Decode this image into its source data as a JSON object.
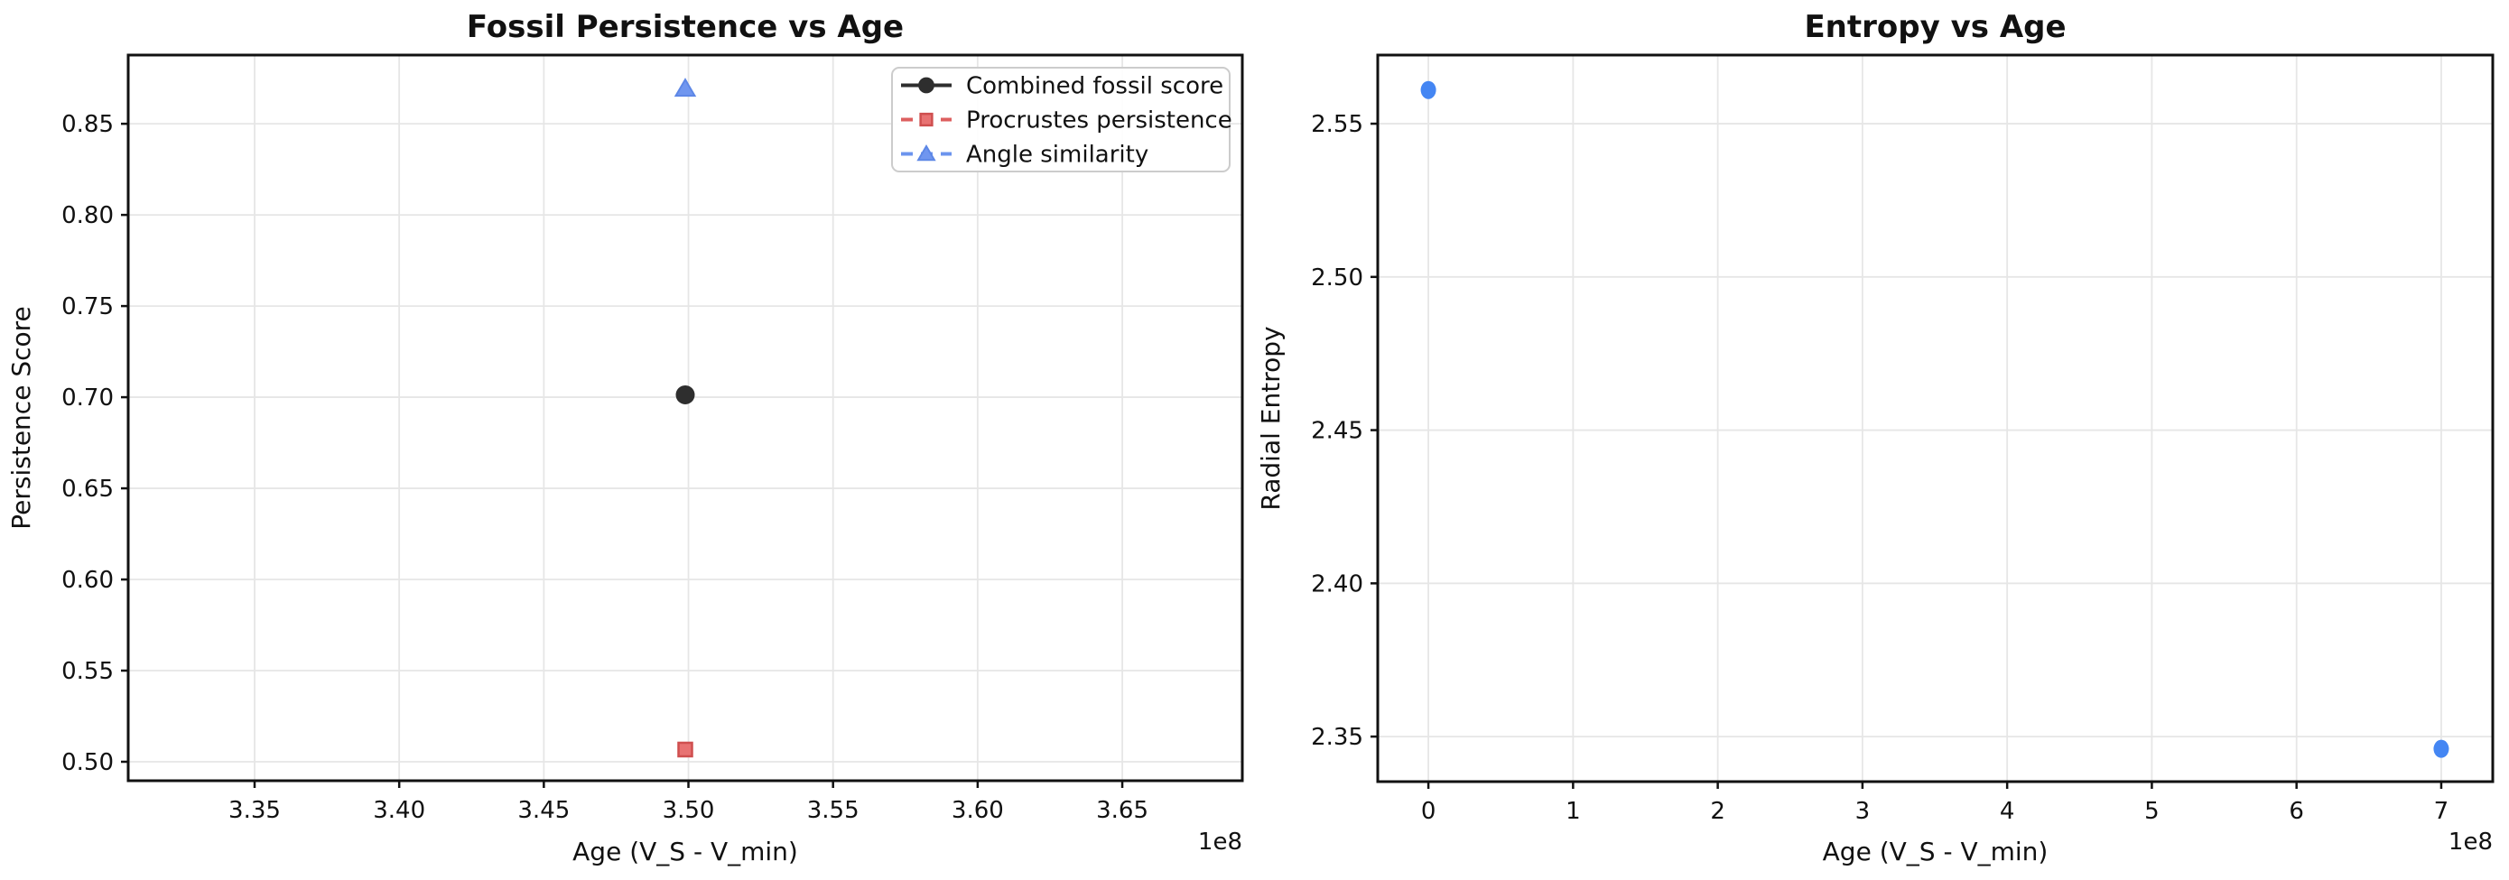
{
  "figure": {
    "background": "#ffffff",
    "grid_color": "#e6e6e6",
    "spine_color": "#111111",
    "text_color": "#111111",
    "legend_border_color": "#cccccc",
    "legend_fill": "#ffffff"
  },
  "chart_data": [
    {
      "type": "line",
      "title": "Fossil Persistence vs Age",
      "xlabel": "Age (V_S - V_min)",
      "ylabel": "Persistence Score",
      "x_offset_label": "1e8",
      "grid": true,
      "legend_position": "upper right",
      "xlim": [
        330630000,
        369150000
      ],
      "ylim": [
        0.4896,
        0.8877
      ],
      "xticks": {
        "values": [
          335000000,
          340000000,
          345000000,
          350000000,
          355000000,
          360000000,
          365000000
        ],
        "labels": [
          "3.35",
          "3.40",
          "3.45",
          "3.50",
          "3.55",
          "3.60",
          "3.65"
        ]
      },
      "yticks": {
        "values": [
          0.5,
          0.55,
          0.6,
          0.65,
          0.7,
          0.75,
          0.8,
          0.85
        ],
        "labels": [
          "0.50",
          "0.55",
          "0.60",
          "0.65",
          "0.70",
          "0.75",
          "0.80",
          "0.85"
        ]
      },
      "show_legend": true,
      "series": [
        {
          "name": "Combined fossil score",
          "marker": "circle",
          "line": "solid",
          "color": "#2e2e2e",
          "marker_fill": "#2e2e2e",
          "marker_edge": "#2e2e2e",
          "points": [
            {
              "x": 349890000,
              "y": 0.7013
            }
          ]
        },
        {
          "name": "Procrustes persistence",
          "marker": "square",
          "line": "dashed",
          "color": "#dd5f5f",
          "marker_fill": "#e87272",
          "marker_edge": "#cf4f4f",
          "points": [
            {
              "x": 349890000,
              "y": 0.5067
            }
          ]
        },
        {
          "name": "Angle similarity",
          "marker": "triangle",
          "line": "dashed",
          "color": "#6c94ee",
          "marker_fill": "#7096ef",
          "marker_edge": "#5d87e6",
          "points": [
            {
              "x": 349890000,
              "y": 0.8693
            }
          ]
        }
      ]
    },
    {
      "type": "scatter",
      "title": "Entropy vs Age",
      "xlabel": "Age (V_S - V_min)",
      "ylabel": "Radial Entropy",
      "x_offset_label": "1e8",
      "grid": true,
      "legend_position": "none",
      "xlim": [
        -35000000,
        735600000
      ],
      "ylim": [
        2.3353,
        2.5724
      ],
      "xticks": {
        "values": [
          0,
          100000000,
          200000000,
          300000000,
          400000000,
          500000000,
          600000000,
          700000000
        ],
        "labels": [
          "0",
          "1",
          "2",
          "3",
          "4",
          "5",
          "6",
          "7"
        ]
      },
      "yticks": {
        "values": [
          2.35,
          2.4,
          2.45,
          2.5,
          2.55
        ],
        "labels": [
          "2.35",
          "2.40",
          "2.45",
          "2.50",
          "2.55"
        ]
      },
      "show_legend": false,
      "series": [
        {
          "name": "Radial entropy",
          "marker": "dot",
          "line": "none",
          "color": "#4486f3",
          "marker_fill": "#4486f3",
          "marker_edge": "#4486f3",
          "points": [
            {
              "x": 0,
              "y": 2.561
            },
            {
              "x": 700000000,
              "y": 2.346
            }
          ]
        }
      ]
    }
  ]
}
